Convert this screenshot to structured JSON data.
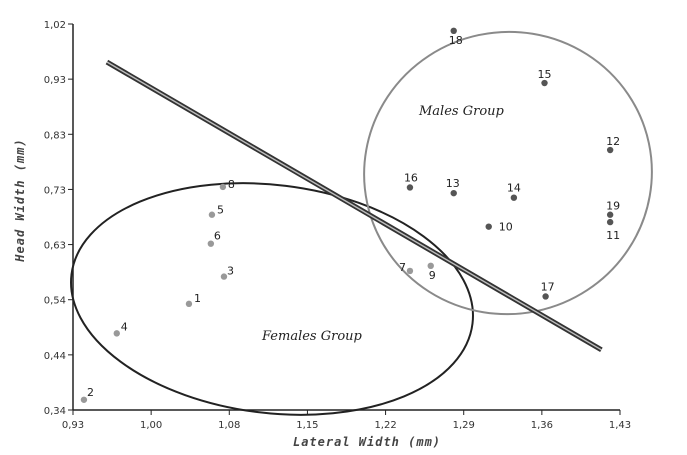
{
  "chart_data": {
    "type": "scatter",
    "xlabel": "Lateral Width (mm)",
    "ylabel": "Head Width (mm)",
    "xlim": [
      0.93,
      1.43
    ],
    "ylim": [
      0.34,
      1.02
    ],
    "x_ticks": [
      "0,93",
      "1,00",
      "1,08",
      "1,15",
      "1,22",
      "1,29",
      "1,36",
      "1,43"
    ],
    "y_ticks": [
      "0,34",
      "0,44",
      "0,54",
      "0,63",
      "0,73",
      "0,83",
      "0,93",
      "1,02"
    ],
    "grid": false,
    "colors": {
      "females": "#999999",
      "males": "#555555",
      "divider": "#333333"
    },
    "series": [
      {
        "name": "Females Group",
        "points": [
          {
            "id": "1",
            "x": 1.036,
            "y": 0.527
          },
          {
            "id": "2",
            "x": 0.94,
            "y": 0.358
          },
          {
            "id": "3",
            "x": 1.068,
            "y": 0.575
          },
          {
            "id": "4",
            "x": 0.97,
            "y": 0.475
          },
          {
            "id": "5",
            "x": 1.057,
            "y": 0.684
          },
          {
            "id": "6",
            "x": 1.056,
            "y": 0.633
          },
          {
            "id": "7",
            "x": 1.238,
            "y": 0.585
          },
          {
            "id": "8",
            "x": 1.067,
            "y": 0.733
          },
          {
            "id": "9",
            "x": 1.257,
            "y": 0.594
          }
        ]
      },
      {
        "name": "Males Group",
        "points": [
          {
            "id": "10",
            "x": 1.31,
            "y": 0.663
          },
          {
            "id": "11",
            "x": 1.421,
            "y": 0.671
          },
          {
            "id": "12",
            "x": 1.421,
            "y": 0.798
          },
          {
            "id": "13",
            "x": 1.278,
            "y": 0.722
          },
          {
            "id": "14",
            "x": 1.333,
            "y": 0.714
          },
          {
            "id": "15",
            "x": 1.361,
            "y": 0.916
          },
          {
            "id": "16",
            "x": 1.238,
            "y": 0.732
          },
          {
            "id": "17",
            "x": 1.362,
            "y": 0.54
          },
          {
            "id": "18",
            "x": 1.278,
            "y": 1.008
          },
          {
            "id": "19",
            "x": 1.421,
            "y": 0.684
          }
        ]
      }
    ],
    "divider_line": {
      "x": [
        0.961,
        1.413
      ],
      "y": [
        0.953,
        0.446
      ]
    },
    "annotations": [
      "Females Group",
      "Males Group"
    ]
  }
}
